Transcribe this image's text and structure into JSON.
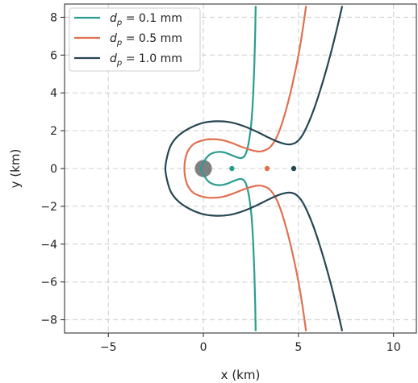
{
  "chart_data": {
    "type": "line",
    "xlabel": "x (km)",
    "ylabel": "y (km)",
    "xlim": [
      -7.3,
      11.2
    ],
    "ylim": [
      -8.7,
      8.7
    ],
    "xticks": [
      -5,
      0,
      5,
      10
    ],
    "yticks": [
      -8,
      -6,
      -4,
      -2,
      0,
      2,
      4,
      6,
      8
    ],
    "grid": true,
    "legend_position": "top-left",
    "body": {
      "x": 0,
      "y": 0,
      "radius_km": 0.45,
      "color": "#808080"
    },
    "series": [
      {
        "name": "d_p = 0.1 mm",
        "legend_prefix": "d",
        "legend_sub": "p",
        "legend_suffix": " =  0.1 mm",
        "color": "#2a9d8f",
        "point": [
          1.5,
          0
        ],
        "x": [
          2.75,
          2.72,
          2.68,
          2.63,
          2.58,
          2.52,
          2.45,
          2.38,
          2.3,
          2.2,
          2.1,
          1.95,
          1.75,
          1.5,
          1.2,
          0.9,
          0.6,
          0.35,
          0.15,
          0.0,
          -0.1,
          -0.12,
          -0.1,
          0.0,
          0.15,
          0.35,
          0.6,
          0.9,
          1.2,
          1.5,
          1.75,
          1.95,
          2.1,
          2.2,
          2.3,
          2.38,
          2.45,
          2.52,
          2.58,
          2.63,
          2.68,
          2.72,
          2.75
        ],
        "y": [
          8.6,
          7.0,
          5.5,
          4.2,
          3.2,
          2.4,
          1.8,
          1.35,
          1.0,
          0.72,
          0.6,
          0.55,
          0.6,
          0.7,
          0.82,
          0.88,
          0.85,
          0.75,
          0.55,
          0.3,
          0.1,
          0.0,
          -0.1,
          -0.3,
          -0.55,
          -0.75,
          -0.85,
          -0.88,
          -0.82,
          -0.7,
          -0.6,
          -0.55,
          -0.6,
          -0.72,
          -1.0,
          -1.35,
          -1.8,
          -2.4,
          -3.2,
          -4.2,
          -5.5,
          -7.0,
          -8.6
        ]
      },
      {
        "name": "d_p = 0.5 mm",
        "legend_prefix": "d",
        "legend_sub": "p",
        "legend_suffix": " =  0.5 mm",
        "color": "#e07050",
        "point": [
          3.35,
          0
        ],
        "x": [
          5.4,
          5.2,
          5.0,
          4.8,
          4.6,
          4.4,
          4.2,
          4.0,
          3.8,
          3.5,
          3.2,
          2.9,
          2.5,
          2.0,
          1.5,
          1.0,
          0.5,
          0.0,
          -0.5,
          -0.8,
          -0.95,
          -1.0,
          -0.95,
          -0.8,
          -0.5,
          0.0,
          0.5,
          1.0,
          1.5,
          2.0,
          2.5,
          2.9,
          3.2,
          3.5,
          3.8,
          4.0,
          4.2,
          4.4,
          4.6,
          4.8,
          5.0,
          5.2,
          5.4
        ],
        "y": [
          8.6,
          7.2,
          6.0,
          5.0,
          4.1,
          3.3,
          2.6,
          2.0,
          1.55,
          1.12,
          0.95,
          0.9,
          0.98,
          1.15,
          1.35,
          1.5,
          1.55,
          1.5,
          1.3,
          0.95,
          0.5,
          0.0,
          -0.5,
          -0.95,
          -1.3,
          -1.5,
          -1.55,
          -1.5,
          -1.35,
          -1.15,
          -0.98,
          -0.9,
          -0.95,
          -1.12,
          -1.55,
          -2.0,
          -2.6,
          -3.3,
          -4.1,
          -5.0,
          -6.0,
          -7.2,
          -8.6
        ]
      },
      {
        "name": "d_p = 1.0 mm",
        "legend_prefix": "d",
        "legend_sub": "p",
        "legend_suffix": " =  1.0 mm",
        "color": "#264653",
        "point": [
          4.75,
          0
        ],
        "x": [
          7.3,
          7.0,
          6.7,
          6.4,
          6.1,
          5.8,
          5.5,
          5.2,
          4.9,
          4.6,
          4.3,
          3.9,
          3.4,
          2.8,
          2.1,
          1.4,
          0.7,
          0.0,
          -0.7,
          -1.3,
          -1.7,
          -1.9,
          -2.0,
          -1.9,
          -1.7,
          -1.3,
          -0.7,
          0.0,
          0.7,
          1.4,
          2.1,
          2.8,
          3.4,
          3.9,
          4.3,
          4.6,
          4.9,
          5.2,
          5.5,
          5.8,
          6.1,
          6.4,
          6.7,
          7.0,
          7.3
        ],
        "y": [
          8.6,
          7.3,
          6.1,
          5.0,
          4.0,
          3.1,
          2.35,
          1.75,
          1.4,
          1.28,
          1.3,
          1.42,
          1.65,
          1.95,
          2.25,
          2.45,
          2.5,
          2.42,
          2.15,
          1.75,
          1.25,
          0.65,
          0.0,
          -0.65,
          -1.25,
          -1.75,
          -2.15,
          -2.42,
          -2.5,
          -2.45,
          -2.25,
          -1.95,
          -1.65,
          -1.42,
          -1.3,
          -1.28,
          -1.4,
          -1.75,
          -2.35,
          -3.1,
          -4.0,
          -5.0,
          -6.1,
          -7.3,
          -8.6
        ]
      }
    ]
  }
}
